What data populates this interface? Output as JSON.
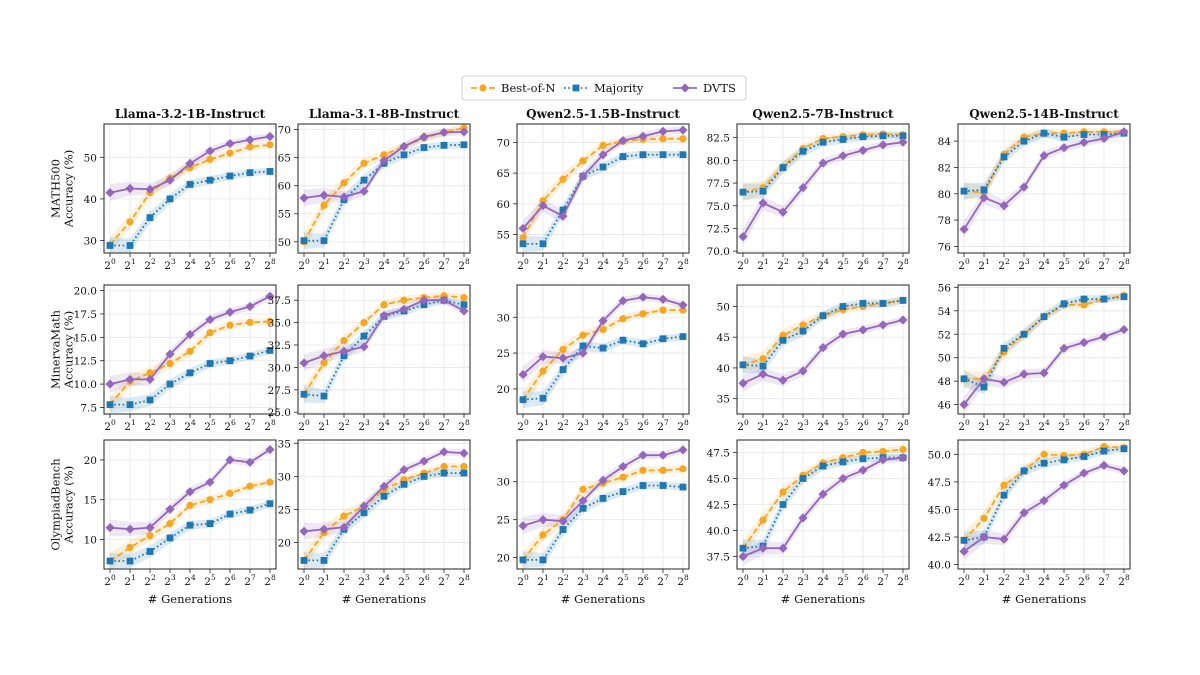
{
  "chart_data": {
    "type": "line",
    "x_ticks": [
      "2^0",
      "2^1",
      "2^2",
      "2^3",
      "2^4",
      "2^5",
      "2^6",
      "2^7",
      "2^8"
    ],
    "x_values": [
      1,
      2,
      4,
      8,
      16,
      32,
      64,
      128,
      256
    ],
    "xlabel": "# Generations",
    "legend": {
      "placement": "top-center",
      "entries": [
        "Best-of-N",
        "Majority",
        "DVTS"
      ]
    },
    "series_styles": [
      {
        "name": "Best-of-N",
        "color": "#f5a623",
        "marker": "circle",
        "line": "dashed"
      },
      {
        "name": "Majority",
        "color": "#1f77b4",
        "marker": "square",
        "line": "dotted"
      },
      {
        "name": "DVTS",
        "color": "#9467bd",
        "marker": "diamond",
        "line": "solid"
      }
    ],
    "grid": true,
    "columns": [
      "Llama-3.2-1B-Instruct",
      "Llama-3.1-8B-Instruct",
      "Qwen2.5-1.5B-Instruct",
      "Qwen2.5-7B-Instruct",
      "Qwen2.5-14B-Instruct"
    ],
    "rows": [
      "MATH500\nAccuracy (%)",
      "MinervaMath\nAccuracy (%)",
      "OlympiadBench\nAccuracy (%)"
    ],
    "panels": [
      {
        "row": 0,
        "col": 0,
        "ylim": [
          27,
          58
        ],
        "yticks": [
          30,
          40,
          50
        ],
        "series": [
          {
            "name": "Best-of-N",
            "values": [
              29,
              34.5,
              41.5,
              45,
              47.5,
              49.5,
              51,
              52.5,
              53
            ]
          },
          {
            "name": "Majority",
            "values": [
              28.8,
              28.8,
              35.5,
              40,
              43.5,
              44.5,
              45.5,
              46.3,
              46.6
            ]
          },
          {
            "name": "DVTS",
            "values": [
              41.5,
              42.5,
              42.3,
              44.5,
              48.5,
              51.5,
              53.3,
              54.2,
              55
            ]
          }
        ]
      },
      {
        "row": 0,
        "col": 1,
        "ylim": [
          48,
          71
        ],
        "yticks": [
          50,
          55,
          60,
          65,
          70
        ],
        "series": [
          {
            "name": "Best-of-N",
            "values": [
              50,
              56.5,
              60.5,
              64,
              65.5,
              67,
              68.5,
              69.5,
              70.3
            ]
          },
          {
            "name": "Majority",
            "values": [
              50.2,
              50.2,
              57.5,
              61,
              64,
              65.5,
              66.8,
              67.2,
              67.3
            ]
          },
          {
            "name": "DVTS",
            "values": [
              57.8,
              58.3,
              58,
              59,
              64.5,
              67,
              68.7,
              69.5,
              69.6
            ]
          }
        ]
      },
      {
        "row": 0,
        "col": 2,
        "ylim": [
          52,
          73
        ],
        "yticks": [
          55,
          60,
          65,
          70
        ],
        "series": [
          {
            "name": "Best-of-N",
            "values": [
              54.5,
              60.5,
              64,
              67,
              69.5,
              70.2,
              70.5,
              70.6,
              70.6
            ]
          },
          {
            "name": "Majority",
            "values": [
              53.5,
              53.5,
              59,
              64.5,
              66,
              67.7,
              68,
              68,
              68
            ]
          },
          {
            "name": "DVTS",
            "values": [
              56,
              59.7,
              58,
              64.5,
              68,
              70.3,
              71,
              71.8,
              72
            ]
          }
        ]
      },
      {
        "row": 0,
        "col": 3,
        "ylim": [
          69.8,
          84
        ],
        "yticks": [
          70.0,
          72.5,
          75.0,
          77.5,
          80.0,
          82.5
        ],
        "series": [
          {
            "name": "Best-of-N",
            "values": [
              76.5,
              77,
              79.3,
              81.3,
              82.4,
              82.6,
              82.8,
              82.9,
              82.8
            ]
          },
          {
            "name": "Majority",
            "values": [
              76.5,
              76.6,
              79.2,
              81,
              82,
              82.3,
              82.6,
              82.7,
              82.7
            ]
          },
          {
            "name": "DVTS",
            "values": [
              71.6,
              75.3,
              74.3,
              77,
              79.7,
              80.5,
              81.1,
              81.7,
              82
            ]
          }
        ]
      },
      {
        "row": 0,
        "col": 4,
        "ylim": [
          75.5,
          85.3
        ],
        "yticks": [
          76,
          78,
          80,
          82,
          84
        ],
        "series": [
          {
            "name": "Best-of-N",
            "values": [
              80.2,
              80.1,
              83,
              84.3,
              84.6,
              84.6,
              84.7,
              84.7,
              84.7
            ]
          },
          {
            "name": "Majority",
            "values": [
              80.2,
              80.3,
              82.8,
              84,
              84.6,
              84.3,
              84.5,
              84.5,
              84.6
            ]
          },
          {
            "name": "DVTS",
            "values": [
              77.3,
              79.7,
              79.1,
              80.5,
              82.9,
              83.5,
              83.9,
              84.2,
              84.7
            ]
          }
        ]
      },
      {
        "row": 1,
        "col": 0,
        "ylim": [
          6.8,
          20.6
        ],
        "yticks": [
          7.5,
          10.0,
          12.5,
          15.0,
          17.5,
          20.0
        ],
        "series": [
          {
            "name": "Best-of-N",
            "values": [
              7.8,
              10.3,
              11.2,
              12.2,
              13.5,
              15.5,
              16.3,
              16.6,
              16.7
            ]
          },
          {
            "name": "Majority",
            "values": [
              7.8,
              7.8,
              8.3,
              10,
              11.2,
              12.2,
              12.5,
              13,
              13.6
            ]
          },
          {
            "name": "DVTS",
            "values": [
              10,
              10.5,
              10.5,
              13.2,
              15.3,
              16.9,
              17.7,
              18.3,
              19.4
            ]
          }
        ]
      },
      {
        "row": 1,
        "col": 1,
        "ylim": [
          24.8,
          39.2
        ],
        "yticks": [
          25.0,
          27.5,
          30.0,
          32.5,
          35.0,
          37.5
        ],
        "series": [
          {
            "name": "Best-of-N",
            "values": [
              27,
              30.5,
              33,
              35,
              37,
              37.5,
              37.8,
              38,
              37.8
            ]
          },
          {
            "name": "Majority",
            "values": [
              27,
              26.8,
              31.3,
              33.5,
              35.7,
              36.3,
              37,
              37.5,
              37
            ]
          },
          {
            "name": "DVTS",
            "values": [
              30.5,
              31.3,
              31.8,
              32.3,
              35.8,
              36.5,
              37.5,
              37.5,
              36.3
            ]
          }
        ]
      },
      {
        "row": 1,
        "col": 2,
        "ylim": [
          16.5,
          34.5
        ],
        "yticks": [
          20,
          25,
          30
        ],
        "series": [
          {
            "name": "Best-of-N",
            "values": [
              18.5,
              22.5,
              25.5,
              27.5,
              28.3,
              29.8,
              30.5,
              31,
              31
            ]
          },
          {
            "name": "Majority",
            "values": [
              18.5,
              18.7,
              22.7,
              26,
              25.7,
              26.8,
              26.3,
              27,
              27.3
            ]
          },
          {
            "name": "DVTS",
            "values": [
              22,
              24.5,
              24.3,
              25,
              29.5,
              32.3,
              32.8,
              32.5,
              31.7
            ]
          }
        ]
      },
      {
        "row": 1,
        "col": 3,
        "ylim": [
          32.5,
          53.5
        ],
        "yticks": [
          35,
          40,
          45,
          50
        ],
        "series": [
          {
            "name": "Best-of-N",
            "values": [
              40.5,
              41.5,
              45.3,
              47,
              48.5,
              49.5,
              50,
              50.5,
              51
            ]
          },
          {
            "name": "Majority",
            "values": [
              40.5,
              40.3,
              44.5,
              46,
              48.5,
              50,
              50.5,
              50.5,
              51
            ]
          },
          {
            "name": "DVTS",
            "values": [
              37.5,
              39,
              38,
              39.5,
              43.3,
              45.5,
              46.2,
              47,
              47.8
            ]
          }
        ]
      },
      {
        "row": 1,
        "col": 4,
        "ylim": [
          45.2,
          56.2
        ],
        "yticks": [
          46,
          48,
          50,
          52,
          54,
          56
        ],
        "series": [
          {
            "name": "Best-of-N",
            "values": [
              48.2,
              48.2,
              50.5,
              52,
              53.5,
              54.5,
              54.5,
              55,
              55.3
            ]
          },
          {
            "name": "Majority",
            "values": [
              48.2,
              47.5,
              50.8,
              52,
              53.5,
              54.6,
              55,
              55,
              55.2
            ]
          },
          {
            "name": "DVTS",
            "values": [
              46,
              48.2,
              47.9,
              48.6,
              48.7,
              50.8,
              51.3,
              51.8,
              52.4
            ]
          }
        ]
      },
      {
        "row": 2,
        "col": 0,
        "ylim": [
          6.3,
          22.5
        ],
        "yticks": [
          10,
          15,
          20
        ],
        "series": [
          {
            "name": "Best-of-N",
            "values": [
              7.3,
              9,
              10.5,
              12,
              14.3,
              15,
              15.8,
              16.7,
              17.2
            ]
          },
          {
            "name": "Majority",
            "values": [
              7.3,
              7.3,
              8.5,
              10.2,
              11.8,
              12,
              13.2,
              13.7,
              14.5
            ]
          },
          {
            "name": "DVTS",
            "values": [
              11.5,
              11.3,
              11.5,
              13.8,
              16,
              17.2,
              20,
              19.7,
              21.3
            ]
          }
        ]
      },
      {
        "row": 2,
        "col": 1,
        "ylim": [
          16,
          35.5
        ],
        "yticks": [
          20,
          25,
          30,
          35
        ],
        "series": [
          {
            "name": "Best-of-N",
            "values": [
              17.3,
              21.5,
              24,
              25.5,
              28,
              29.5,
              30.5,
              31.5,
              31.5
            ]
          },
          {
            "name": "Majority",
            "values": [
              17.3,
              17.3,
              22,
              24.5,
              27,
              28.8,
              30,
              30.5,
              30.5
            ]
          },
          {
            "name": "DVTS",
            "values": [
              21.7,
              22,
              22.3,
              25.5,
              28.5,
              31,
              32.3,
              33.7,
              33.5
            ]
          }
        ]
      },
      {
        "row": 2,
        "col": 2,
        "ylim": [
          18.5,
          35.5
        ],
        "yticks": [
          20,
          25,
          30
        ],
        "series": [
          {
            "name": "Best-of-N",
            "values": [
              19.7,
              23,
              25,
              29,
              29.8,
              30.6,
              31.5,
              31.5,
              31.7
            ]
          },
          {
            "name": "Majority",
            "values": [
              19.7,
              19.7,
              23.7,
              26.5,
              27.8,
              28.7,
              29.5,
              29.5,
              29.3
            ]
          },
          {
            "name": "DVTS",
            "values": [
              24.2,
              25,
              24.8,
              27.5,
              30.2,
              32,
              33.5,
              33.5,
              34.2
            ]
          }
        ]
      },
      {
        "row": 2,
        "col": 3,
        "ylim": [
          36.3,
          48.7
        ],
        "yticks": [
          37.5,
          40.0,
          42.5,
          45.0,
          47.5
        ],
        "series": [
          {
            "name": "Best-of-N",
            "values": [
              38.3,
              41,
              43.7,
              45.3,
              46.5,
              47,
              47.5,
              47.6,
              47.8
            ]
          },
          {
            "name": "Majority",
            "values": [
              38.3,
              38.5,
              42.5,
              45,
              46.2,
              46.6,
              46.9,
              47,
              47
            ]
          },
          {
            "name": "DVTS",
            "values": [
              37.5,
              38.3,
              38.3,
              41.2,
              43.5,
              45,
              45.8,
              46.8,
              47
            ]
          }
        ]
      },
      {
        "row": 2,
        "col": 4,
        "ylim": [
          39.6,
          51.3
        ],
        "yticks": [
          40.0,
          42.5,
          45.0,
          47.5,
          50.0
        ],
        "series": [
          {
            "name": "Best-of-N",
            "values": [
              42.2,
              44.2,
              47.2,
              48.5,
              50,
              49.9,
              50,
              50.7,
              50.6
            ]
          },
          {
            "name": "Majority",
            "values": [
              42.2,
              42.5,
              46.3,
              48.5,
              49.2,
              49.5,
              49.8,
              50.3,
              50.5
            ]
          },
          {
            "name": "DVTS",
            "values": [
              41.2,
              42.5,
              42.3,
              44.7,
              45.8,
              47.2,
              48.3,
              49,
              48.5
            ]
          }
        ]
      }
    ]
  }
}
